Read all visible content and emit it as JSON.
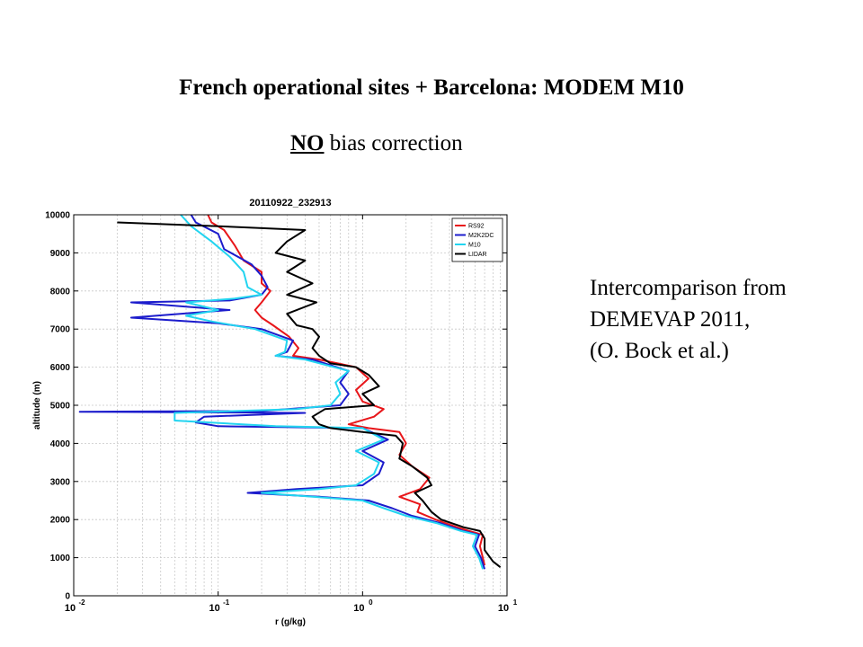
{
  "slide": {
    "title": "French operational sites + Barcelona: MODEM M10",
    "subtitle_emphasis": "NO",
    "subtitle_rest": " bias correction",
    "note_lines": [
      "Intercomparison from",
      "DEMEVAP 2011,",
      "(O. Bock et al.)"
    ]
  },
  "chart_data": {
    "type": "line",
    "title": "20110922_232913",
    "xlabel": "r (g/kg)",
    "ylabel": "altitude (m)",
    "xscale": "log",
    "xlim": [
      0.01,
      10
    ],
    "ylim": [
      0,
      10000
    ],
    "grid": true,
    "legend_position": "top-right",
    "x_ticks": [
      {
        "value": 0.01,
        "base": "10",
        "exp": "-2"
      },
      {
        "value": 0.1,
        "base": "10",
        "exp": "-1"
      },
      {
        "value": 1,
        "base": "10",
        "exp": "0"
      },
      {
        "value": 10,
        "base": "10",
        "exp": "1"
      }
    ],
    "y_ticks": [
      0,
      1000,
      2000,
      3000,
      4000,
      5000,
      6000,
      7000,
      8000,
      9000,
      10000
    ],
    "series": [
      {
        "name": "RS92",
        "color": "#e8161a",
        "points": [
          [
            7.0,
            800
          ],
          [
            6.8,
            1000
          ],
          [
            6.5,
            1300
          ],
          [
            6.8,
            1600
          ],
          [
            5.5,
            1700
          ],
          [
            4.5,
            1800
          ],
          [
            3.2,
            2000
          ],
          [
            2.4,
            2200
          ],
          [
            2.5,
            2400
          ],
          [
            1.8,
            2600
          ],
          [
            2.5,
            2800
          ],
          [
            2.9,
            3100
          ],
          [
            2.2,
            3400
          ],
          [
            1.8,
            3700
          ],
          [
            2.0,
            4000
          ],
          [
            1.8,
            4300
          ],
          [
            1.1,
            4400
          ],
          [
            0.8,
            4500
          ],
          [
            1.2,
            4700
          ],
          [
            1.4,
            4900
          ],
          [
            1.0,
            5100
          ],
          [
            0.9,
            5400
          ],
          [
            1.1,
            5700
          ],
          [
            0.9,
            6000
          ],
          [
            0.5,
            6200
          ],
          [
            0.33,
            6300
          ],
          [
            0.36,
            6500
          ],
          [
            0.31,
            6800
          ],
          [
            0.24,
            7100
          ],
          [
            0.2,
            7300
          ],
          [
            0.18,
            7500
          ],
          [
            0.2,
            7700
          ],
          [
            0.23,
            8000
          ],
          [
            0.2,
            8200
          ],
          [
            0.2,
            8500
          ],
          [
            0.15,
            8800
          ],
          [
            0.13,
            9200
          ],
          [
            0.11,
            9600
          ],
          [
            0.09,
            9800
          ],
          [
            0.085,
            10000
          ]
        ]
      },
      {
        "name": "M2K2DC",
        "color": "#1c1ccc",
        "points": [
          [
            7.0,
            700
          ],
          [
            6.6,
            1000
          ],
          [
            6.0,
            1300
          ],
          [
            6.4,
            1600
          ],
          [
            5.0,
            1700
          ],
          [
            3.5,
            1900
          ],
          [
            2.2,
            2100
          ],
          [
            1.6,
            2300
          ],
          [
            1.1,
            2500
          ],
          [
            0.5,
            2600
          ],
          [
            0.16,
            2700
          ],
          [
            0.35,
            2800
          ],
          [
            1.0,
            2900
          ],
          [
            1.3,
            3200
          ],
          [
            1.4,
            3500
          ],
          [
            1.0,
            3800
          ],
          [
            1.5,
            4100
          ],
          [
            1.0,
            4400
          ],
          [
            0.1,
            4450
          ],
          [
            0.07,
            4550
          ],
          [
            0.08,
            4700
          ],
          [
            0.4,
            4800
          ],
          [
            0.011,
            4830
          ],
          [
            0.2,
            4850
          ],
          [
            0.7,
            5000
          ],
          [
            0.8,
            5300
          ],
          [
            0.7,
            5600
          ],
          [
            0.8,
            5900
          ],
          [
            0.45,
            6200
          ],
          [
            0.25,
            6300
          ],
          [
            0.3,
            6400
          ],
          [
            0.33,
            6700
          ],
          [
            0.2,
            7000
          ],
          [
            0.1,
            7150
          ],
          [
            0.025,
            7300
          ],
          [
            0.12,
            7500
          ],
          [
            0.025,
            7700
          ],
          [
            0.12,
            7750
          ],
          [
            0.2,
            7900
          ],
          [
            0.22,
            8100
          ],
          [
            0.2,
            8400
          ],
          [
            0.17,
            8700
          ],
          [
            0.11,
            9100
          ],
          [
            0.1,
            9500
          ],
          [
            0.07,
            9800
          ],
          [
            0.065,
            10000
          ]
        ]
      },
      {
        "name": "M10",
        "color": "#22d4f0",
        "points": [
          [
            6.8,
            700
          ],
          [
            6.4,
            1000
          ],
          [
            5.8,
            1300
          ],
          [
            6.2,
            1600
          ],
          [
            4.8,
            1700
          ],
          [
            3.3,
            1900
          ],
          [
            2.0,
            2100
          ],
          [
            1.4,
            2300
          ],
          [
            1.0,
            2500
          ],
          [
            0.45,
            2600
          ],
          [
            0.2,
            2700
          ],
          [
            0.5,
            2800
          ],
          [
            0.9,
            2900
          ],
          [
            1.2,
            3200
          ],
          [
            1.3,
            3500
          ],
          [
            0.9,
            3800
          ],
          [
            1.4,
            4100
          ],
          [
            1.0,
            4400
          ],
          [
            0.25,
            4450
          ],
          [
            0.05,
            4600
          ],
          [
            0.05,
            4800
          ],
          [
            0.35,
            4900
          ],
          [
            0.6,
            5000
          ],
          [
            0.7,
            5300
          ],
          [
            0.65,
            5600
          ],
          [
            0.8,
            5900
          ],
          [
            0.4,
            6200
          ],
          [
            0.25,
            6300
          ],
          [
            0.29,
            6400
          ],
          [
            0.3,
            6700
          ],
          [
            0.18,
            7000
          ],
          [
            0.09,
            7200
          ],
          [
            0.06,
            7350
          ],
          [
            0.1,
            7500
          ],
          [
            0.06,
            7700
          ],
          [
            0.13,
            7800
          ],
          [
            0.2,
            7900
          ],
          [
            0.16,
            8100
          ],
          [
            0.15,
            8500
          ],
          [
            0.12,
            8900
          ],
          [
            0.09,
            9300
          ],
          [
            0.065,
            9700
          ],
          [
            0.055,
            10000
          ]
        ]
      },
      {
        "name": "LIDAR",
        "color": "#000000",
        "points": [
          [
            9.0,
            750
          ],
          [
            8.0,
            900
          ],
          [
            7.0,
            1200
          ],
          [
            7.0,
            1500
          ],
          [
            6.5,
            1700
          ],
          [
            5.0,
            1800
          ],
          [
            3.5,
            2000
          ],
          [
            3.0,
            2200
          ],
          [
            2.6,
            2500
          ],
          [
            2.3,
            2700
          ],
          [
            3.0,
            2900
          ],
          [
            2.8,
            3100
          ],
          [
            2.2,
            3400
          ],
          [
            1.8,
            3600
          ],
          [
            1.9,
            4000
          ],
          [
            1.7,
            4200
          ],
          [
            1.0,
            4300
          ],
          [
            0.6,
            4400
          ],
          [
            0.5,
            4500
          ],
          [
            0.45,
            4700
          ],
          [
            0.55,
            4900
          ],
          [
            1.2,
            5000
          ],
          [
            1.0,
            5300
          ],
          [
            1.3,
            5500
          ],
          [
            1.1,
            5800
          ],
          [
            0.9,
            6000
          ],
          [
            0.6,
            6100
          ],
          [
            0.5,
            6300
          ],
          [
            0.45,
            6500
          ],
          [
            0.5,
            6800
          ],
          [
            0.45,
            7000
          ],
          [
            0.35,
            7100
          ],
          [
            0.3,
            7400
          ],
          [
            0.48,
            7700
          ],
          [
            0.3,
            7900
          ],
          [
            0.45,
            8200
          ],
          [
            0.3,
            8500
          ],
          [
            0.4,
            8800
          ],
          [
            0.25,
            9000
          ],
          [
            0.3,
            9300
          ],
          [
            0.4,
            9600
          ],
          [
            0.1,
            9700
          ],
          [
            0.02,
            9800
          ]
        ]
      }
    ]
  }
}
